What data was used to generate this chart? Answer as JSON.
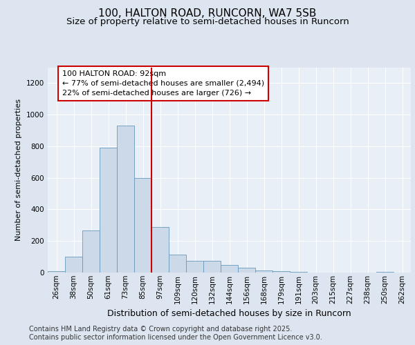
{
  "title1": "100, HALTON ROAD, RUNCORN, WA7 5SB",
  "title2": "Size of property relative to semi-detached houses in Runcorn",
  "xlabel": "Distribution of semi-detached houses by size in Runcorn",
  "ylabel": "Number of semi-detached properties",
  "categories": [
    "26sqm",
    "38sqm",
    "50sqm",
    "61sqm",
    "73sqm",
    "85sqm",
    "97sqm",
    "109sqm",
    "120sqm",
    "132sqm",
    "144sqm",
    "156sqm",
    "168sqm",
    "179sqm",
    "191sqm",
    "203sqm",
    "215sqm",
    "227sqm",
    "238sqm",
    "250sqm",
    "262sqm"
  ],
  "values": [
    10,
    100,
    265,
    790,
    930,
    600,
    290,
    115,
    75,
    75,
    50,
    30,
    15,
    10,
    5,
    0,
    0,
    0,
    0,
    5,
    0
  ],
  "bar_color": "#ccd9e8",
  "bar_edge_color": "#6699bb",
  "annotation_box_label": "100 HALTON ROAD: 92sqm",
  "annotation_line1": "← 77% of semi-detached houses are smaller (2,494)",
  "annotation_line2": "22% of semi-detached houses are larger (726) →",
  "vline_color": "#cc0000",
  "footer1": "Contains HM Land Registry data © Crown copyright and database right 2025.",
  "footer2": "Contains public sector information licensed under the Open Government Licence v3.0.",
  "ylim": [
    0,
    1300
  ],
  "yticks": [
    0,
    200,
    400,
    600,
    800,
    1000,
    1200
  ],
  "bg_color": "#dde6f0",
  "plot_bg_color": "#e8eff7",
  "grid_color": "#ffffff",
  "title1_fontsize": 11,
  "title2_fontsize": 9.5,
  "xlabel_fontsize": 9,
  "ylabel_fontsize": 8,
  "tick_fontsize": 7.5,
  "annot_fontsize": 8,
  "footer_fontsize": 7
}
